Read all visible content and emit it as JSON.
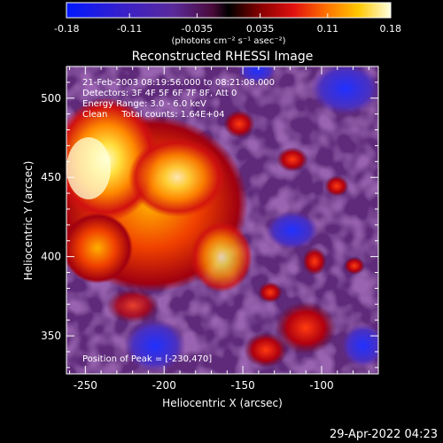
{
  "chart_data": {
    "type": "heatmap",
    "title": "Reconstructed RHESSI Image",
    "xlabel": "Heliocentric X (arcsec)",
    "ylabel": "Heliocentric Y (arcsec)",
    "xlim": [
      -262,
      -64
    ],
    "ylim": [
      326,
      520
    ],
    "x_ticks": [
      "-250",
      "-200",
      "-150",
      "-100"
    ],
    "x_tick_values": [
      -250,
      -200,
      -150,
      -100
    ],
    "y_ticks": [
      "350",
      "400",
      "450",
      "500"
    ],
    "y_tick_values": [
      350,
      400,
      450,
      500
    ],
    "colorbar": {
      "range": [
        -0.18,
        0.18
      ],
      "tick_labels": [
        "-0.18",
        "-0.11",
        "-0.035",
        "0.035",
        "0.11",
        "0.18"
      ],
      "tick_values": [
        -0.18,
        -0.11,
        -0.035,
        0.035,
        0.11,
        0.18
      ],
      "unit_label": "(photons cm⁻² s⁻¹ asec⁻²)"
    },
    "annotations": {
      "time_range": "21-Feb-2003 08:19:56.000 to 08:21:08.000",
      "detectors": "Detectors: 3F 4F 5F 6F 7F 8F, Att 0",
      "energy": "Energy Range: 3.0 - 6.0 keV",
      "method": "Clean     Total counts: 1.64E+04",
      "peak": "Position of Peak = [-230,470]"
    },
    "peak_position": [
      -230,
      470
    ],
    "grid": false
  },
  "footer": {
    "timestamp": "29-Apr-2022 04:23"
  }
}
